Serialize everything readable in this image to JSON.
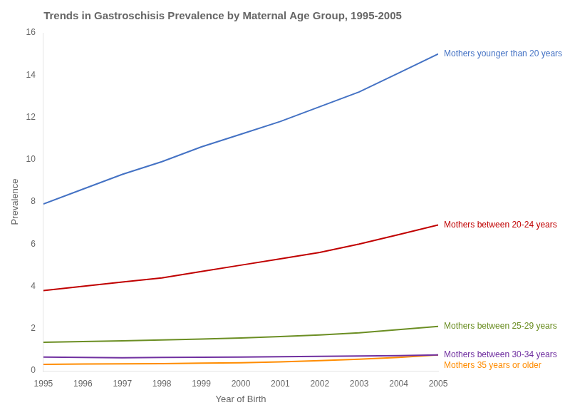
{
  "chart_data": {
    "type": "line",
    "title": "Trends in Gastroschisis Prevalence by Maternal Age Group, 1995-2005",
    "xlabel": "Year of Birth",
    "ylabel": "Prevalence",
    "x": [
      1995,
      1996,
      1997,
      1998,
      1999,
      2000,
      2001,
      2002,
      2003,
      2004,
      2005
    ],
    "series": [
      {
        "name": "Mothers younger than 20 years",
        "color": "#4472C4",
        "values": [
          7.9,
          8.6,
          9.3,
          9.9,
          10.6,
          11.2,
          11.8,
          12.5,
          13.2,
          14.1,
          15.0
        ]
      },
      {
        "name": "Mothers between 20-24 years",
        "color": "#C00000",
        "values": [
          3.8,
          4.0,
          4.2,
          4.4,
          4.7,
          5.0,
          5.3,
          5.6,
          6.0,
          6.45,
          6.9
        ]
      },
      {
        "name": "Mothers between 25-29 years",
        "color": "#6B8E23",
        "values": [
          1.35,
          1.38,
          1.42,
          1.46,
          1.5,
          1.55,
          1.62,
          1.7,
          1.8,
          1.95,
          2.1
        ]
      },
      {
        "name": "Mothers between 30-34 years",
        "color": "#7030A0",
        "values": [
          0.65,
          0.63,
          0.62,
          0.63,
          0.64,
          0.65,
          0.67,
          0.68,
          0.7,
          0.72,
          0.75
        ]
      },
      {
        "name": "Mothers 35 years or older",
        "color": "#FF8C00",
        "values": [
          0.3,
          0.32,
          0.33,
          0.34,
          0.36,
          0.38,
          0.42,
          0.48,
          0.55,
          0.63,
          0.75
        ]
      }
    ],
    "xlim": [
      1995,
      2005
    ],
    "ylim": [
      0,
      16
    ],
    "xticks": [
      1995,
      1996,
      1997,
      1998,
      1999,
      2000,
      2001,
      2002,
      2003,
      2004,
      2005
    ],
    "yticks": [
      0,
      2,
      4,
      6,
      8,
      10,
      12,
      14,
      16
    ],
    "grid": false
  }
}
